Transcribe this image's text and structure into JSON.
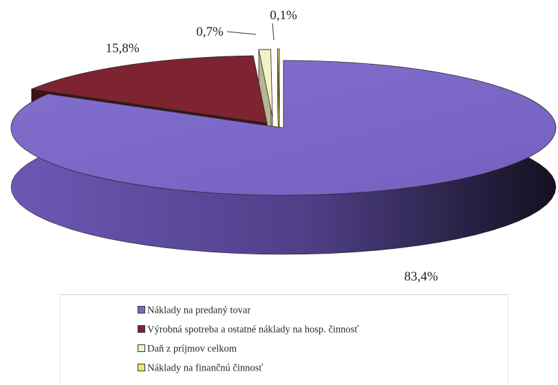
{
  "chart_data": {
    "type": "pie",
    "title": "",
    "slices": [
      {
        "label": "Náklady na predaný tovar",
        "value": 83.4,
        "display": "83,4%",
        "color": "#7d67c7"
      },
      {
        "label": "Výrobná spotreba a ostatné náklady na hosp. činnosť",
        "value": 15.8,
        "display": "15,8%",
        "color": "#7d2430"
      },
      {
        "label": "Daň z príjmov celkom",
        "value": 0.7,
        "display": "0,7%",
        "color": "#f4f2c6"
      },
      {
        "label": "Náklady na finančnú činnosť",
        "value": 0.1,
        "display": "0,1%",
        "color": "#f0e36c"
      }
    ],
    "legend_placement": "bottom"
  }
}
